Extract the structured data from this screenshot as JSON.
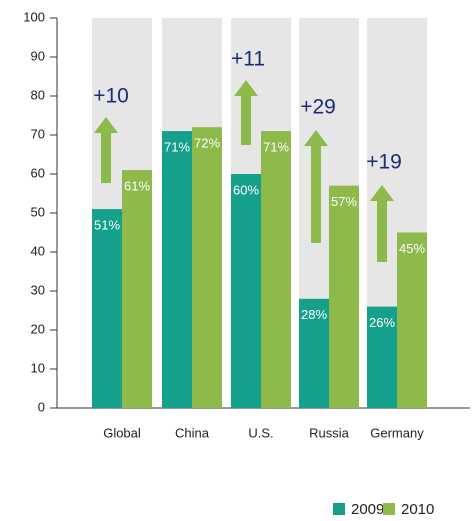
{
  "chart_data": {
    "type": "bar",
    "categories": [
      "Global",
      "China",
      "U.S.",
      "Russia",
      "Germany"
    ],
    "series": [
      {
        "name": "2009",
        "color": "#15a08c",
        "values": [
          51,
          71,
          60,
          28,
          26
        ],
        "value_labels": [
          "51%",
          "71%",
          "60%",
          "28%",
          "26%"
        ]
      },
      {
        "name": "2010",
        "color": "#8dba4a",
        "values": [
          61,
          72,
          71,
          57,
          45
        ],
        "value_labels": [
          "61%",
          "72%",
          "71%",
          "57%",
          "45%"
        ]
      }
    ],
    "annotations": [
      "+10",
      "+11",
      "+29",
      "+19"
    ],
    "ylim": [
      0,
      100
    ],
    "yticks": [
      0,
      10,
      20,
      30,
      40,
      50,
      60,
      70,
      80,
      90,
      100
    ],
    "background_color": "#e6e6e6",
    "legend": "bottom-right"
  }
}
